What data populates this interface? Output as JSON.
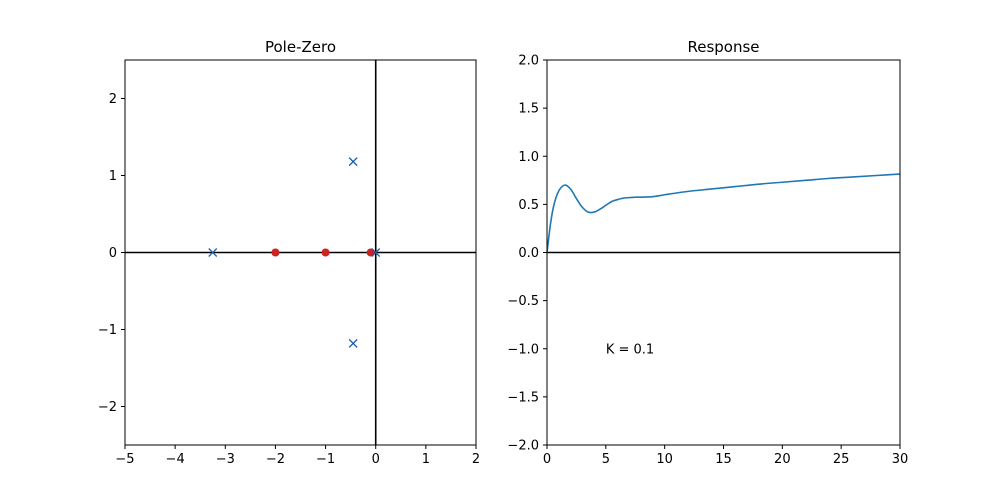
{
  "chart_data": [
    {
      "type": "scatter",
      "title": "Pole-Zero",
      "xlim": [
        -5,
        2
      ],
      "ylim": [
        -2.5,
        2.5
      ],
      "xticks": [
        -5,
        -4,
        -3,
        -2,
        -1,
        0,
        1,
        2
      ],
      "yticks": [
        -2,
        -1,
        0,
        1,
        2
      ],
      "xtick_labels": [
        "−5",
        "−4",
        "−3",
        "−2",
        "−1",
        "0",
        "1",
        "2"
      ],
      "ytick_labels": [
        "−2",
        "−1",
        "0",
        "1",
        "2"
      ],
      "grid": false,
      "axis_lines": {
        "x": 0,
        "y": 0
      },
      "poles": [
        {
          "x": -3.25,
          "y": 0
        },
        {
          "x": -0.45,
          "y": 1.18
        },
        {
          "x": -0.45,
          "y": -1.18
        },
        {
          "x": 0.0,
          "y": 0
        }
      ],
      "zeros": [
        {
          "x": -2.0,
          "y": 0
        },
        {
          "x": -1.0,
          "y": 0
        },
        {
          "x": -0.1,
          "y": 0
        }
      ],
      "colors": {
        "pole": "#1f5fa8",
        "zero": "#cc2222"
      }
    },
    {
      "type": "line",
      "title": "Response",
      "xlim": [
        0,
        30
      ],
      "ylim": [
        -2.0,
        2.0
      ],
      "xticks": [
        0,
        5,
        10,
        15,
        20,
        25,
        30
      ],
      "yticks": [
        -2.0,
        -1.5,
        -1.0,
        -0.5,
        0.0,
        0.5,
        1.0,
        1.5,
        2.0
      ],
      "xtick_labels": [
        "0",
        "5",
        "10",
        "15",
        "20",
        "25",
        "30"
      ],
      "ytick_labels": [
        "−2.0",
        "−1.5",
        "−1.0",
        "−0.5",
        "0.0",
        "0.5",
        "1.0",
        "1.5",
        "2.0"
      ],
      "grid": false,
      "axis_lines": {
        "y": 0
      },
      "series": [
        {
          "color": "#1f77b4",
          "x": [
            0,
            0.3,
            0.6,
            1.0,
            1.5,
            2.0,
            2.5,
            3.0,
            3.5,
            4.0,
            4.5,
            5.0,
            5.5,
            6.0,
            6.5,
            7.0,
            7.5,
            8.0,
            9.0,
            10.0,
            12.0,
            14.0,
            16.0,
            18.0,
            20.0,
            22.0,
            24.0,
            26.0,
            28.0,
            30.0
          ],
          "y": [
            0.0,
            0.3,
            0.5,
            0.64,
            0.7,
            0.66,
            0.56,
            0.47,
            0.42,
            0.42,
            0.45,
            0.49,
            0.53,
            0.55,
            0.565,
            0.57,
            0.575,
            0.575,
            0.58,
            0.6,
            0.635,
            0.66,
            0.685,
            0.71,
            0.73,
            0.75,
            0.77,
            0.785,
            0.8,
            0.815
          ]
        }
      ],
      "annotations": [
        {
          "text": "K = 0.1",
          "x": 5,
          "y": -1.0
        }
      ]
    }
  ]
}
